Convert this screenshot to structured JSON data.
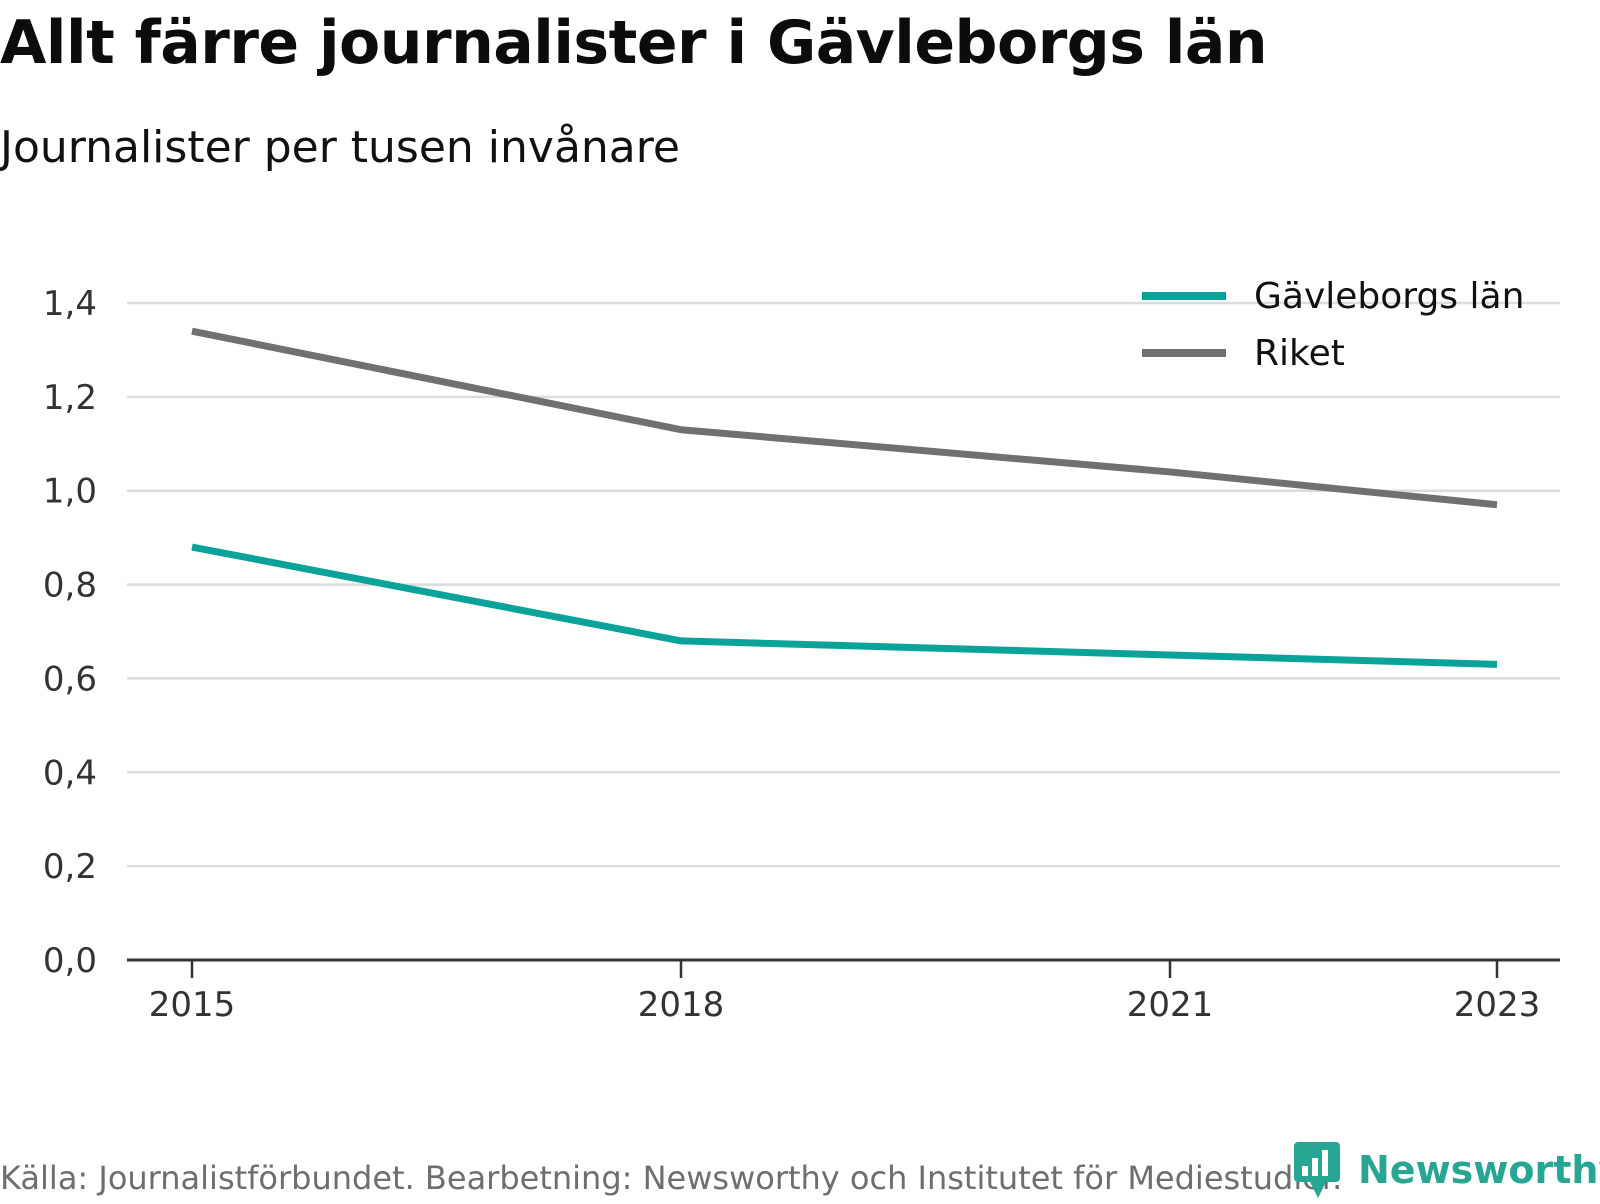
{
  "chart_data": {
    "type": "line",
    "title": "Allt färre journalister i Gävleborgs län",
    "subtitle": "Journalister per tusen invånare",
    "x": [
      "2015",
      "2018",
      "2021",
      "2023"
    ],
    "y_ticks": [
      "0,0",
      "0,2",
      "0,4",
      "0,6",
      "0,8",
      "1,0",
      "1,2",
      "1,4"
    ],
    "ylim": [
      0,
      1.4
    ],
    "grid": true,
    "legend_position": "top-right",
    "series": [
      {
        "name": "Gävleborgs län",
        "color": "#0aa399",
        "values": [
          0.88,
          0.68,
          0.65,
          0.63
        ]
      },
      {
        "name": "Riket",
        "color": "#707073",
        "values": [
          1.34,
          1.13,
          1.04,
          0.97
        ]
      }
    ]
  },
  "footer": {
    "source": "Källa: Journalistförbundet. Bearbetning: Newsworthy och Institutet för Mediestudier.",
    "brand": "Newsworthy",
    "brand_icon": "newsworthy-logo-icon",
    "brand_color": "#27a694"
  }
}
